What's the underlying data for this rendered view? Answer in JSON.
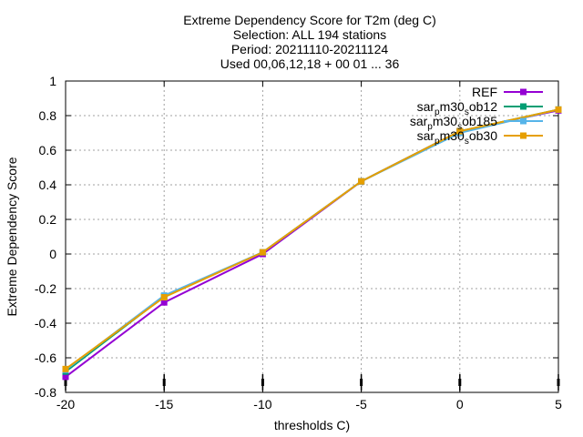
{
  "chart_data": {
    "type": "line",
    "title_lines": [
      "Extreme Dependency Score  for T2m (deg C)",
      "Selection: ALL    194 stations",
      "Period: 20211110-20211124",
      "Used 00,06,12,18 + 00 01 ... 36"
    ],
    "xlabel": "thresholds C)",
    "ylabel": "Extreme Dependency Score",
    "xlim": [
      -20,
      5
    ],
    "ylim": [
      -0.8,
      1
    ],
    "x_ticks": [
      -20,
      -15,
      -10,
      -5,
      0,
      5
    ],
    "y_ticks": [
      -0.8,
      -0.6,
      -0.4,
      -0.2,
      0,
      0.2,
      0.4,
      0.6,
      0.8,
      1
    ],
    "x_tick_labels": [
      "-20",
      "-15",
      "-10",
      "-5",
      "0",
      "5"
    ],
    "y_tick_labels": [
      "-0.8",
      "-0.6",
      "-0.4",
      "-0.2",
      "0",
      "0.2",
      "0.4",
      "0.6",
      "0.8",
      "1"
    ],
    "grid": true,
    "legend_position": "top-right",
    "x": [
      -20,
      -15,
      -10,
      -5,
      0,
      5
    ],
    "series": [
      {
        "name": "REF",
        "legend_parts": [
          [
            "REF",
            "n"
          ]
        ],
        "color": "#9400d3",
        "values": [
          -0.71,
          -0.28,
          0.0,
          0.42,
          0.71,
          0.83
        ]
      },
      {
        "name": "sar_pm30_sob12",
        "legend_parts": [
          [
            "sar",
            "n"
          ],
          [
            "p",
            "sub"
          ],
          [
            "m30",
            "n"
          ],
          [
            "s",
            "sub"
          ],
          [
            "ob12",
            "n"
          ]
        ],
        "color": "#009e73",
        "values": [
          -0.68,
          -0.245,
          0.01,
          0.42,
          0.71,
          0.835
        ]
      },
      {
        "name": "sar_pm30_sob185",
        "legend_parts": [
          [
            "sar",
            "n"
          ],
          [
            "p",
            "sub"
          ],
          [
            "m30",
            "n"
          ],
          [
            "s",
            "sub"
          ],
          [
            "ob185",
            "n"
          ]
        ],
        "color": "#56b4e9",
        "values": [
          -0.67,
          -0.24,
          0.01,
          0.42,
          0.7,
          0.835
        ]
      },
      {
        "name": "sar_pm30_sob30",
        "legend_parts": [
          [
            "sar",
            "n"
          ],
          [
            "p",
            "sub"
          ],
          [
            "m30",
            "n"
          ],
          [
            "s",
            "sub"
          ],
          [
            "ob30",
            "n"
          ]
        ],
        "color": "#e69f00",
        "values": [
          -0.665,
          -0.25,
          0.01,
          0.42,
          0.71,
          0.835
        ]
      }
    ]
  }
}
